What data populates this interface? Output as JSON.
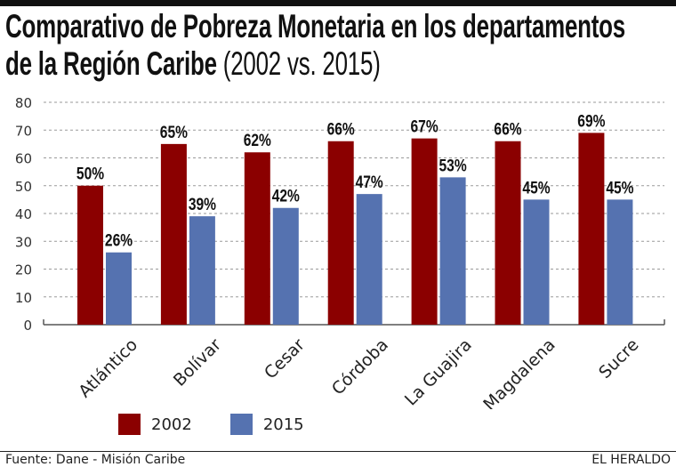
{
  "header": {
    "title_line1": "Comparativo de Pobreza Monetaria en los departamentos",
    "title_line2": "de la Región Caribe",
    "title_suffix": "(2002 vs. 2015)"
  },
  "colors": {
    "series_2002": "#8B0000",
    "series_2015": "#5572B0",
    "grid": "#9a9a9a",
    "axis": "#555555"
  },
  "chart_data": {
    "type": "bar",
    "title": "Comparativo de Pobreza Monetaria en los departamentos de la Región Caribe (2002 vs. 2015)",
    "xlabel": "",
    "ylabel": "",
    "ylim": [
      0,
      80
    ],
    "yticks": [
      "0",
      "10",
      "20",
      "30",
      "40",
      "50",
      "60",
      "70",
      "80"
    ],
    "grid": true,
    "legend_position": "bottom-left",
    "categories": [
      "Atlántico",
      "Bolívar",
      "Cesar",
      "Córdoba",
      "La Guajira",
      "Magdalena",
      "Sucre"
    ],
    "series": [
      {
        "name": "2002",
        "values": [
          50,
          65,
          62,
          66,
          67,
          66,
          69
        ],
        "labels": [
          "50%",
          "65%",
          "62%",
          "66%",
          "67%",
          "66%",
          "69%"
        ]
      },
      {
        "name": "2015",
        "values": [
          26,
          39,
          42,
          47,
          53,
          45,
          45
        ],
        "labels": [
          "26%",
          "39%",
          "42%",
          "47%",
          "53%",
          "45%",
          "45%"
        ]
      }
    ]
  },
  "legend": {
    "items": [
      {
        "label": "2002"
      },
      {
        "label": "2015"
      }
    ]
  },
  "footer": {
    "source": "Fuente: Dane - Misión Caribe",
    "brand": "EL HERALDO"
  }
}
